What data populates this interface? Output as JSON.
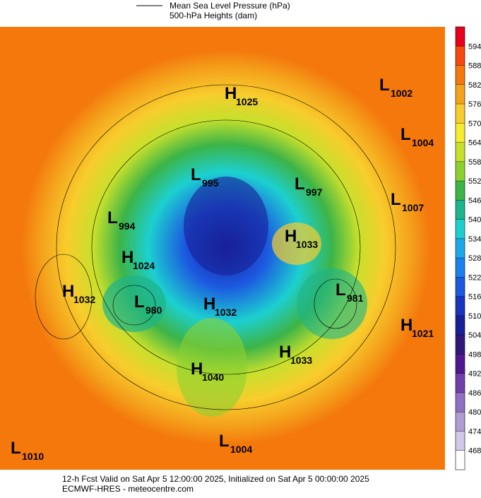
{
  "legend": {
    "line_label": "Mean Sea Level Pressure (hPa)",
    "fill_label": "500-hPa Heights (dam)"
  },
  "pressure_centers": [
    {
      "letter": "H",
      "value": "1025"
    },
    {
      "letter": "L",
      "value": "1002"
    },
    {
      "letter": "L",
      "value": "1004"
    },
    {
      "letter": "L",
      "value": "995"
    },
    {
      "letter": "L",
      "value": "997"
    },
    {
      "letter": "L",
      "value": "1007"
    },
    {
      "letter": "L",
      "value": "994"
    },
    {
      "letter": "H",
      "value": "1033"
    },
    {
      "letter": "H",
      "value": "1024"
    },
    {
      "letter": "H",
      "value": "1032"
    },
    {
      "letter": "L",
      "value": "980"
    },
    {
      "letter": "H",
      "value": "1032"
    },
    {
      "letter": "L",
      "value": "981"
    },
    {
      "letter": "H",
      "value": "1021"
    },
    {
      "letter": "H",
      "value": "1033"
    },
    {
      "letter": "H",
      "value": "1040"
    },
    {
      "letter": "L",
      "value": "1004"
    },
    {
      "letter": "L",
      "value": "1010"
    }
  ],
  "colorbar": {
    "ticks": [
      "594",
      "588",
      "582",
      "576",
      "570",
      "564",
      "558",
      "552",
      "546",
      "540",
      "534",
      "528",
      "522",
      "516",
      "510",
      "504",
      "498",
      "492",
      "486",
      "480",
      "474",
      "468"
    ],
    "colors": [
      "#e8001c",
      "#f84810",
      "#f4780c",
      "#f4a21c",
      "#f8cc2c",
      "#f4ec2c",
      "#c8e02c",
      "#8cd030",
      "#3cb448",
      "#1cb48c",
      "#1cd0d0",
      "#1ca8e8",
      "#1c80f0",
      "#1c58e0",
      "#1834c0",
      "#182098",
      "#301878",
      "#501890",
      "#7040a8",
      "#9070c0",
      "#b09cd4",
      "#d4c8e8",
      "#ffffff"
    ]
  },
  "footer": {
    "line1": "12-h Fcst Valid on Sat Apr  5 12:00:00 2025, Initialized on Sat Apr  5 00:00:00 2025",
    "line2": "ECMWF-HRES  - meteocentre.com"
  }
}
